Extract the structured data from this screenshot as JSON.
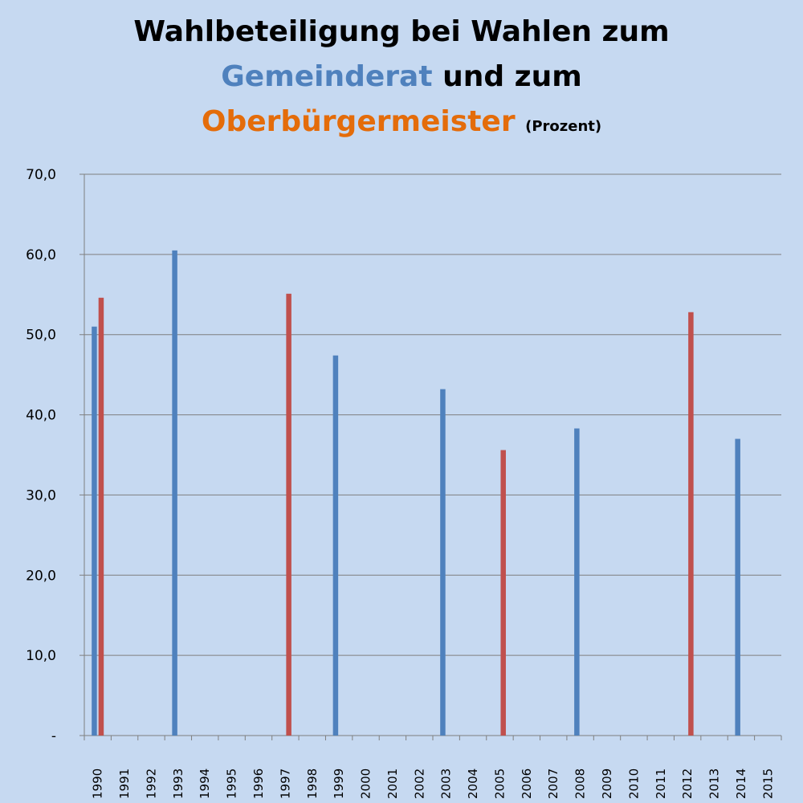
{
  "title": {
    "line1": "Wahlbeteiligung bei Wahlen zum",
    "gemeinderat": "Gemeinderat",
    "connector": "und zum",
    "ob": "Oberbürgermeister",
    "unit": "(Prozent)"
  },
  "colors": {
    "gemeinderat": "#4f81bd",
    "ob": "#c0504d",
    "title_orange": "#e46c0a",
    "background": "#c6d9f1"
  },
  "chart_data": {
    "type": "bar",
    "categories": [
      "1990",
      "1991",
      "1992",
      "1993",
      "1994",
      "1995",
      "1996",
      "1997",
      "1998",
      "1999",
      "2000",
      "2001",
      "2002",
      "2003",
      "2004",
      "2005",
      "2006",
      "2007",
      "2008",
      "2009",
      "2010",
      "2011",
      "2012",
      "2013",
      "2014",
      "2015"
    ],
    "series": [
      {
        "values": [
          51.0,
          null,
          null,
          60.5,
          null,
          null,
          null,
          null,
          null,
          47.4,
          null,
          null,
          null,
          43.2,
          null,
          null,
          null,
          null,
          38.3,
          null,
          null,
          null,
          null,
          null,
          37.0,
          null
        ]
      },
      {
        "values": [
          54.6,
          null,
          null,
          null,
          null,
          null,
          null,
          55.1,
          null,
          null,
          null,
          null,
          null,
          null,
          null,
          35.6,
          null,
          null,
          null,
          null,
          null,
          null,
          52.8,
          null,
          null,
          null
        ]
      }
    ],
    "ylim": [
      0,
      70
    ],
    "yticks": [
      "-",
      "10,0",
      "20,0",
      "30,0",
      "40,0",
      "50,0",
      "60,0",
      "70,0"
    ],
    "grid": true
  }
}
